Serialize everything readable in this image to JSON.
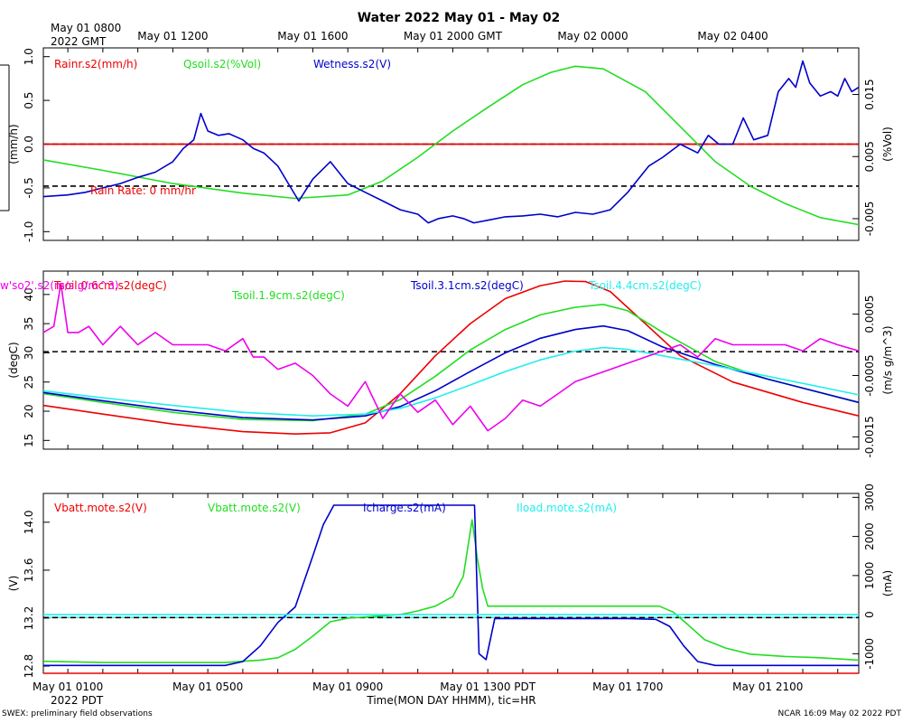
{
  "title": "Water 2022 May 01 - May 02",
  "top_time_labels": [
    "May 01 1200",
    "May 01 1600",
    "May 01 2000 GMT",
    "May 02 0000",
    "May 02 0400"
  ],
  "top_left_label_1": "May 01 0800",
  "top_left_label_2": "2022 GMT",
  "bottom_time_labels": [
    "May 01 0100",
    "May 01 0500",
    "May 01 0900",
    "May 01 1300 PDT",
    "May 01 1700",
    "May 01 2100"
  ],
  "bottom_left_label": "2022 PDT",
  "x_axis_label": "Time(MON DAY HHMM), tic=HR",
  "footer_left": "SWEX: preliminary field observations",
  "footer_right": "NCAR 16:09 May 02 2022 PDT",
  "colors": {
    "red": "#ee0000",
    "green": "#22dd22",
    "blue": "#0000cc",
    "cyan": "#22eeee",
    "magenta": "#ee00ee",
    "black": "#000000"
  },
  "chart_data": [
    {
      "type": "line",
      "panel": "water",
      "x_unit": "hours since May 01 0000 PDT",
      "xlim": [
        0.3,
        23.6
      ],
      "left_axis": {
        "label": "(mm/h)",
        "ylim": [
          -1.1,
          1.1
        ],
        "ticks": [
          "-1.0",
          "-0.5",
          "0.0",
          "0.5",
          "1.0"
        ],
        "tick_values": [
          -1,
          -0.5,
          0,
          0.5,
          1
        ]
      },
      "right_axis": {
        "label": "(%Vol)",
        "ylim": [
          -0.0085,
          0.0225
        ],
        "ticks": [
          "-0.005",
          "0.005",
          "0.015"
        ],
        "tick_values": [
          -0.005,
          0.005,
          0.015
        ]
      },
      "reference_lines": [
        {
          "axis": "left",
          "value": 0,
          "color": "red",
          "style": "solid"
        },
        {
          "axis": "left",
          "value": 0,
          "color": "black",
          "style": "dashed"
        },
        {
          "axis": "left",
          "value": -0.48,
          "color": "black",
          "style": "dashed"
        }
      ],
      "annotation": "Rain Rate: 0 mm/hr",
      "series": [
        {
          "name": "Rainr.s2(mm/h)",
          "color": "red",
          "axis": "left",
          "x": [
            0.3,
            23.6
          ],
          "y": [
            0,
            0
          ]
        },
        {
          "name": "Qsoil.s2(%Vol)",
          "color": "green",
          "axis": "left",
          "x": [
            0.3,
            2,
            4,
            6,
            7.5,
            9,
            10,
            11,
            12,
            13,
            14,
            14.8,
            15.5,
            16.3,
            17.5,
            18.5,
            19.5,
            20.5,
            21.5,
            22.5,
            23.6
          ],
          "y": [
            -0.18,
            -0.3,
            -0.45,
            -0.56,
            -0.62,
            -0.58,
            -0.42,
            -0.15,
            0.15,
            0.42,
            0.68,
            0.82,
            0.89,
            0.86,
            0.6,
            0.2,
            -0.2,
            -0.48,
            -0.68,
            -0.84,
            -0.92
          ]
        },
        {
          "name": "Wetness.s2(V)",
          "color": "blue",
          "axis": "left",
          "x": [
            0.3,
            1,
            1.5,
            2,
            2.5,
            3,
            3.5,
            4,
            4.3,
            4.6,
            4.8,
            5,
            5.3,
            5.6,
            6,
            6.3,
            6.6,
            7,
            7.3,
            7.6,
            8,
            8.5,
            9,
            9.5,
            10,
            10.5,
            11,
            11.3,
            11.6,
            12,
            12.3,
            12.6,
            13,
            13.5,
            14,
            14.5,
            15,
            15.5,
            16,
            16.5,
            17,
            17.3,
            17.6,
            18,
            18.5,
            19,
            19.3,
            19.6,
            20,
            20.3,
            20.6,
            21,
            21.3,
            21.6,
            21.8,
            22,
            22.2,
            22.5,
            22.8,
            23,
            23.2,
            23.4,
            23.6
          ],
          "y": [
            -0.6,
            -0.58,
            -0.55,
            -0.5,
            -0.45,
            -0.38,
            -0.32,
            -0.2,
            -0.05,
            0.05,
            0.35,
            0.15,
            0.1,
            0.12,
            0.05,
            -0.05,
            -0.1,
            -0.25,
            -0.45,
            -0.65,
            -0.4,
            -0.2,
            -0.45,
            -0.55,
            -0.65,
            -0.75,
            -0.8,
            -0.9,
            -0.85,
            -0.82,
            -0.85,
            -0.9,
            -0.87,
            -0.83,
            -0.82,
            -0.8,
            -0.83,
            -0.78,
            -0.8,
            -0.75,
            -0.55,
            -0.4,
            -0.25,
            -0.15,
            0.0,
            -0.1,
            0.1,
            0.0,
            0.0,
            0.3,
            0.05,
            0.1,
            0.6,
            0.75,
            0.65,
            0.95,
            0.7,
            0.55,
            0.6,
            0.55,
            0.75,
            0.6,
            0.65
          ]
        }
      ]
    },
    {
      "type": "line",
      "panel": "soil temperature",
      "x_unit": "hours since May 01 0000 PDT",
      "xlim": [
        0.3,
        23.6
      ],
      "left_axis": {
        "label": "(degC)",
        "ylim": [
          13.5,
          44
        ],
        "ticks": [
          "15",
          "20",
          "25",
          "30",
          "35",
          "40"
        ],
        "tick_values": [
          15,
          20,
          25,
          30,
          35,
          40
        ]
      },
      "right_axis": {
        "label": "(m/s g/m^3)",
        "ylim": [
          -0.0017,
          0.0012
        ],
        "ticks": [
          "-0.0015",
          "-0.0005",
          "0.0005"
        ],
        "tick_values": [
          -0.0015,
          -0.0005,
          0.0005
        ]
      },
      "reference_lines": [
        {
          "axis": "left",
          "value": 30.2,
          "color": "black",
          "style": "dashed"
        }
      ],
      "series": [
        {
          "name": "Tsoil.0.6cm.s2(degC)",
          "color": "red",
          "axis": "left",
          "x": [
            0.3,
            2,
            4,
            6,
            7.5,
            8.5,
            9.5,
            10.5,
            11.5,
            12.5,
            13.5,
            14.5,
            15.2,
            15.8,
            16.5,
            17.5,
            18.5,
            20,
            22,
            23.6
          ],
          "y": [
            21,
            19.5,
            17.8,
            16.5,
            16.1,
            16.3,
            18,
            23,
            29.5,
            35,
            39.3,
            41.5,
            42.3,
            42.2,
            40.5,
            35,
            29.5,
            25,
            21.5,
            19.2
          ]
        },
        {
          "name": "Tsoil.1.9cm.s2(degC)",
          "color": "green",
          "axis": "left",
          "x": [
            0.3,
            2,
            4,
            6,
            8,
            9.5,
            10.5,
            11.5,
            12.5,
            13.5,
            14.5,
            15.5,
            16.3,
            17,
            18,
            19.5,
            21,
            23.6
          ],
          "y": [
            23,
            21.5,
            19.8,
            18.6,
            18.4,
            19.5,
            22,
            26,
            30.5,
            34,
            36.5,
            37.8,
            38.3,
            37.2,
            33.5,
            28.5,
            25.5,
            21.5
          ]
        },
        {
          "name": "Tsoil.3.1cm.s2(degC)",
          "color": "blue",
          "axis": "left",
          "x": [
            0.3,
            2,
            4,
            6,
            8,
            9.5,
            10.5,
            11.5,
            12.5,
            13.5,
            14.5,
            15.5,
            16.3,
            17,
            18,
            19.5,
            21,
            23.6
          ],
          "y": [
            23.2,
            21.8,
            20.2,
            18.9,
            18.5,
            19.2,
            20.8,
            23.5,
            26.8,
            30,
            32.5,
            34,
            34.6,
            33.8,
            31,
            28,
            25.5,
            21.5
          ]
        },
        {
          "name": "Tsoil.4.4cm.s2(degC)",
          "color": "cyan",
          "axis": "left",
          "x": [
            0.3,
            2,
            4,
            6,
            8,
            9.5,
            10.5,
            11.5,
            12.5,
            13.5,
            14.5,
            15.5,
            16.3,
            17,
            18,
            19.5,
            21,
            23.6
          ],
          "y": [
            23.5,
            22.3,
            21,
            19.8,
            19.2,
            19.5,
            20.5,
            22.3,
            24.5,
            26.8,
            28.8,
            30.3,
            30.9,
            30.6,
            29.5,
            27.8,
            26,
            22.8
          ]
        },
        {
          "name": "w'so2'.s2(m/s g/m^3)",
          "color": "magenta",
          "axis": "right",
          "x": [
            0.3,
            0.6,
            0.8,
            1.0,
            1.3,
            1.6,
            2,
            2.5,
            3,
            3.5,
            4,
            4.5,
            5,
            5.5,
            6,
            6.3,
            6.6,
            7,
            7.5,
            8,
            8.5,
            9,
            9.5,
            10,
            10.5,
            11,
            11.5,
            12,
            12.5,
            13,
            13.5,
            14,
            14.5,
            15,
            15.5,
            16,
            16.5,
            17,
            17.5,
            18,
            18.5,
            19,
            19.5,
            20,
            20.5,
            21,
            21.5,
            22,
            22.5,
            23,
            23.6
          ],
          "y": [
            0.0002,
            0.0003,
            0.001,
            0.0002,
            0.0002,
            0.0003,
            0.0,
            0.0003,
            0.0,
            0.0002,
            0.0,
            0.0,
            0.0,
            -0.0001,
            0.0001,
            -0.0002,
            -0.0002,
            -0.0004,
            -0.0003,
            -0.0005,
            -0.0008,
            -0.001,
            -0.0006,
            -0.0012,
            -0.0008,
            -0.0011,
            -0.0009,
            -0.0013,
            -0.001,
            -0.0014,
            -0.0012,
            -0.0009,
            -0.001,
            -0.0008,
            -0.0006,
            -0.0005,
            -0.0004,
            -0.0003,
            -0.0002,
            -0.0001,
            0.0,
            -0.0002,
            0.0001,
            0.0,
            0.0,
            0.0,
            0.0,
            -0.0001,
            0.0001,
            0.0,
            -0.0001
          ]
        }
      ]
    },
    {
      "type": "line",
      "panel": "power",
      "x_unit": "hours since May 01 0000 PDT",
      "xlim": [
        0.3,
        23.6
      ],
      "left_axis": {
        "label": "(V)",
        "ylim": [
          12.74,
          14.24
        ],
        "ticks": [
          "12.8",
          "13.2",
          "13.6",
          "14.0"
        ],
        "tick_values": [
          12.8,
          13.2,
          13.6,
          14.0
        ]
      },
      "right_axis": {
        "label": "(mA)",
        "ylim": [
          -1500,
          3100
        ],
        "ticks": [
          "-1000",
          "0",
          "1000",
          "2000",
          "3000"
        ],
        "tick_values": [
          -1000,
          0,
          1000,
          2000,
          3000
        ]
      },
      "reference_lines": [
        {
          "axis": "left",
          "value": 13.205,
          "color": "cyan",
          "style": "solid"
        },
        {
          "axis": "left",
          "value": 13.205,
          "color": "black",
          "style": "dashed"
        }
      ],
      "series": [
        {
          "name": "Vbatt.mote.s2(V)",
          "color": "red",
          "axis": "left",
          "x": [
            0.3,
            23.6
          ],
          "y": [
            12.7,
            12.7
          ]
        },
        {
          "name": "Vbatt.mote.s2(V)",
          "color": "green",
          "axis": "left",
          "x": [
            0.3,
            2,
            4,
            5.5,
            6,
            6.5,
            7,
            7.5,
            8,
            8.5,
            9,
            10,
            10.5,
            11,
            11.5,
            12,
            12.3,
            12.55,
            12.7,
            12.85,
            13,
            14,
            15,
            16,
            17,
            17.9,
            18.3,
            18.7,
            19.2,
            19.8,
            20.5,
            21.5,
            22.5,
            23.6
          ],
          "y": [
            12.84,
            12.83,
            12.83,
            12.83,
            12.84,
            12.85,
            12.87,
            12.94,
            13.05,
            13.17,
            13.2,
            13.22,
            13.23,
            13.26,
            13.3,
            13.38,
            13.55,
            14.02,
            13.7,
            13.45,
            13.3,
            13.3,
            13.3,
            13.3,
            13.3,
            13.3,
            13.25,
            13.15,
            13.02,
            12.95,
            12.9,
            12.88,
            12.87,
            12.85
          ]
        },
        {
          "name": "Icharge.s2(mA)",
          "color": "blue",
          "axis": "right",
          "x": [
            0.3,
            2,
            4,
            5.5,
            6,
            6.5,
            7,
            7.5,
            8,
            8.3,
            8.6,
            8.8,
            9.2,
            10,
            11,
            12,
            12.5,
            12.62,
            12.75,
            12.95,
            13.2,
            14,
            15,
            16,
            17,
            17.8,
            18.2,
            18.6,
            19,
            19.5,
            20.5,
            22,
            23.6
          ],
          "y": [
            -1300,
            -1300,
            -1300,
            -1300,
            -1200,
            -800,
            -200,
            200,
            1500,
            2300,
            2800,
            2800,
            2800,
            2800,
            2800,
            2800,
            2800,
            2800,
            -1000,
            -1150,
            -100,
            -100,
            -100,
            -100,
            -100,
            -120,
            -300,
            -800,
            -1200,
            -1300,
            -1300,
            -1300,
            -1300
          ]
        },
        {
          "name": "Iload.mote.s2(mA)",
          "color": "cyan",
          "axis": "right",
          "x": [
            0.3,
            23.6
          ],
          "y": [
            0,
            0
          ]
        }
      ]
    }
  ]
}
